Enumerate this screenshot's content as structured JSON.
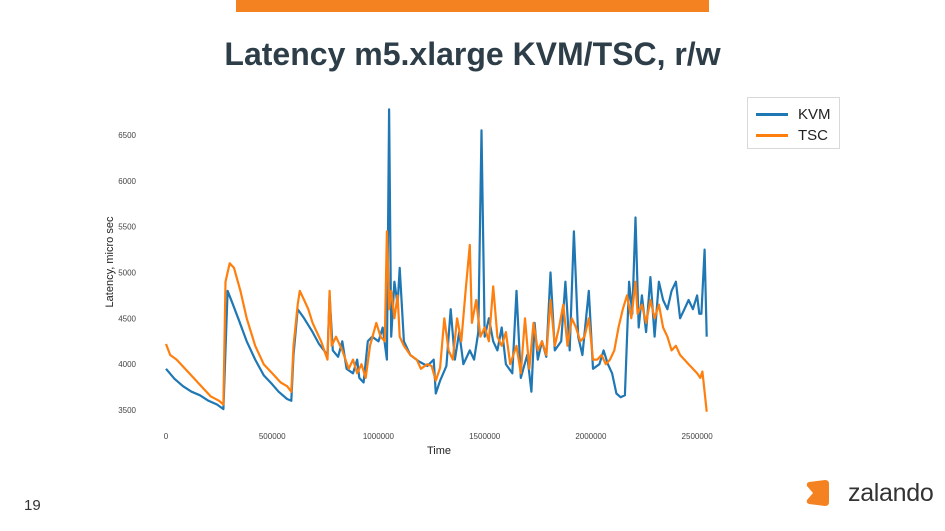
{
  "slide": {
    "title": "Latency m5.xlarge KVM/TSC, r/w",
    "page_number": "19",
    "logo_text": "zalando",
    "accent_color": "#f58220"
  },
  "chart_data": {
    "type": "line",
    "title": "",
    "xlabel": "Time",
    "ylabel": "Latency, micro sec",
    "xlim": [
      0,
      2570000
    ],
    "ylim": [
      3450,
      6850
    ],
    "x_ticks": [
      0,
      500000,
      1000000,
      1500000,
      2000000,
      2500000
    ],
    "x_tick_labels": [
      "0",
      "500000",
      "1000000",
      "1500000",
      "2000000",
      "2500000"
    ],
    "y_ticks": [
      3500,
      4000,
      4500,
      5000,
      5500,
      6000,
      6500
    ],
    "y_tick_labels": [
      "3500",
      "4000",
      "4500",
      "5000",
      "5500",
      "6000",
      "6500"
    ],
    "grid": false,
    "legend_position": "top-right",
    "series": [
      {
        "name": "KVM",
        "color": "#1f77b4",
        "points": [
          [
            0,
            3950
          ],
          [
            40000,
            3840
          ],
          [
            80000,
            3760
          ],
          [
            120000,
            3700
          ],
          [
            160000,
            3660
          ],
          [
            200000,
            3600
          ],
          [
            240000,
            3560
          ],
          [
            270000,
            3510
          ],
          [
            290000,
            4800
          ],
          [
            310000,
            4680
          ],
          [
            340000,
            4500
          ],
          [
            380000,
            4250
          ],
          [
            420000,
            4050
          ],
          [
            460000,
            3880
          ],
          [
            500000,
            3780
          ],
          [
            530000,
            3700
          ],
          [
            570000,
            3620
          ],
          [
            590000,
            3600
          ],
          [
            600000,
            4100
          ],
          [
            620000,
            4600
          ],
          [
            650000,
            4500
          ],
          [
            690000,
            4350
          ],
          [
            720000,
            4220
          ],
          [
            760000,
            4100
          ],
          [
            770000,
            4750
          ],
          [
            785000,
            4150
          ],
          [
            810000,
            4080
          ],
          [
            830000,
            4250
          ],
          [
            850000,
            3950
          ],
          [
            880000,
            3900
          ],
          [
            900000,
            4050
          ],
          [
            910000,
            3850
          ],
          [
            930000,
            3800
          ],
          [
            950000,
            4250
          ],
          [
            970000,
            4300
          ],
          [
            1000000,
            4250
          ],
          [
            1020000,
            4400
          ],
          [
            1040000,
            4050
          ],
          [
            1050000,
            6780
          ],
          [
            1060000,
            4300
          ],
          [
            1075000,
            4900
          ],
          [
            1090000,
            4650
          ],
          [
            1100000,
            5050
          ],
          [
            1120000,
            4250
          ],
          [
            1150000,
            4100
          ],
          [
            1190000,
            4030
          ],
          [
            1230000,
            3980
          ],
          [
            1260000,
            4050
          ],
          [
            1270000,
            3680
          ],
          [
            1290000,
            3820
          ],
          [
            1320000,
            3980
          ],
          [
            1340000,
            4600
          ],
          [
            1360000,
            4050
          ],
          [
            1380000,
            4350
          ],
          [
            1400000,
            4000
          ],
          [
            1430000,
            4150
          ],
          [
            1450000,
            4050
          ],
          [
            1470000,
            4350
          ],
          [
            1485000,
            6550
          ],
          [
            1500000,
            4300
          ],
          [
            1520000,
            4500
          ],
          [
            1540000,
            4250
          ],
          [
            1560000,
            4150
          ],
          [
            1580000,
            4400
          ],
          [
            1600000,
            4000
          ],
          [
            1630000,
            3900
          ],
          [
            1650000,
            4800
          ],
          [
            1670000,
            3850
          ],
          [
            1700000,
            4100
          ],
          [
            1720000,
            3700
          ],
          [
            1735000,
            4450
          ],
          [
            1750000,
            4050
          ],
          [
            1770000,
            4250
          ],
          [
            1790000,
            4080
          ],
          [
            1810000,
            5000
          ],
          [
            1830000,
            4150
          ],
          [
            1860000,
            4250
          ],
          [
            1880000,
            4900
          ],
          [
            1900000,
            4150
          ],
          [
            1920000,
            5450
          ],
          [
            1940000,
            4300
          ],
          [
            1960000,
            4100
          ],
          [
            1990000,
            4800
          ],
          [
            2010000,
            3950
          ],
          [
            2040000,
            4000
          ],
          [
            2060000,
            4150
          ],
          [
            2080000,
            4000
          ],
          [
            2100000,
            3900
          ],
          [
            2120000,
            3680
          ],
          [
            2140000,
            3640
          ],
          [
            2160000,
            3660
          ],
          [
            2180000,
            4900
          ],
          [
            2195000,
            4550
          ],
          [
            2210000,
            5600
          ],
          [
            2225000,
            4400
          ],
          [
            2240000,
            4750
          ],
          [
            2260000,
            4350
          ],
          [
            2280000,
            4950
          ],
          [
            2300000,
            4300
          ],
          [
            2320000,
            4900
          ],
          [
            2340000,
            4700
          ],
          [
            2360000,
            4600
          ],
          [
            2380000,
            4800
          ],
          [
            2400000,
            4900
          ],
          [
            2420000,
            4500
          ],
          [
            2440000,
            4600
          ],
          [
            2460000,
            4700
          ],
          [
            2480000,
            4600
          ],
          [
            2500000,
            4750
          ],
          [
            2510000,
            4550
          ],
          [
            2520000,
            4550
          ],
          [
            2535000,
            5250
          ],
          [
            2545000,
            4300
          ]
        ]
      },
      {
        "name": "TSC",
        "color": "#ff7f0e",
        "points": [
          [
            0,
            4220
          ],
          [
            20000,
            4100
          ],
          [
            50000,
            4050
          ],
          [
            90000,
            3950
          ],
          [
            130000,
            3850
          ],
          [
            170000,
            3750
          ],
          [
            210000,
            3650
          ],
          [
            250000,
            3600
          ],
          [
            270000,
            3560
          ],
          [
            280000,
            4900
          ],
          [
            300000,
            5100
          ],
          [
            320000,
            5050
          ],
          [
            350000,
            4800
          ],
          [
            380000,
            4500
          ],
          [
            420000,
            4200
          ],
          [
            460000,
            4000
          ],
          [
            500000,
            3900
          ],
          [
            540000,
            3800
          ],
          [
            570000,
            3760
          ],
          [
            590000,
            3700
          ],
          [
            600000,
            4200
          ],
          [
            620000,
            4650
          ],
          [
            630000,
            4800
          ],
          [
            650000,
            4700
          ],
          [
            670000,
            4600
          ],
          [
            690000,
            4450
          ],
          [
            710000,
            4350
          ],
          [
            730000,
            4250
          ],
          [
            760000,
            4050
          ],
          [
            770000,
            4800
          ],
          [
            780000,
            4200
          ],
          [
            800000,
            4300
          ],
          [
            830000,
            4150
          ],
          [
            860000,
            3950
          ],
          [
            880000,
            4050
          ],
          [
            900000,
            3900
          ],
          [
            920000,
            4000
          ],
          [
            940000,
            3850
          ],
          [
            960000,
            4200
          ],
          [
            990000,
            4450
          ],
          [
            1010000,
            4300
          ],
          [
            1030000,
            4250
          ],
          [
            1040000,
            5450
          ],
          [
            1050000,
            4600
          ],
          [
            1060000,
            4800
          ],
          [
            1075000,
            4500
          ],
          [
            1090000,
            4750
          ],
          [
            1100000,
            4300
          ],
          [
            1120000,
            4200
          ],
          [
            1150000,
            4100
          ],
          [
            1180000,
            4050
          ],
          [
            1200000,
            3950
          ],
          [
            1230000,
            4000
          ],
          [
            1250000,
            3980
          ],
          [
            1270000,
            3820
          ],
          [
            1290000,
            3960
          ],
          [
            1310000,
            4500
          ],
          [
            1330000,
            4150
          ],
          [
            1350000,
            4050
          ],
          [
            1370000,
            4500
          ],
          [
            1390000,
            4250
          ],
          [
            1410000,
            4800
          ],
          [
            1430000,
            5300
          ],
          [
            1440000,
            4450
          ],
          [
            1460000,
            4700
          ],
          [
            1480000,
            4300
          ],
          [
            1500000,
            4400
          ],
          [
            1520000,
            4250
          ],
          [
            1540000,
            4850
          ],
          [
            1560000,
            4300
          ],
          [
            1580000,
            4200
          ],
          [
            1600000,
            4350
          ],
          [
            1620000,
            4000
          ],
          [
            1650000,
            4200
          ],
          [
            1670000,
            3900
          ],
          [
            1690000,
            4500
          ],
          [
            1710000,
            3950
          ],
          [
            1730000,
            4450
          ],
          [
            1750000,
            4150
          ],
          [
            1770000,
            4250
          ],
          [
            1790000,
            4100
          ],
          [
            1810000,
            4700
          ],
          [
            1830000,
            4200
          ],
          [
            1850000,
            4400
          ],
          [
            1870000,
            4650
          ],
          [
            1890000,
            4200
          ],
          [
            1910000,
            4500
          ],
          [
            1930000,
            4400
          ],
          [
            1950000,
            4250
          ],
          [
            1970000,
            4300
          ],
          [
            1990000,
            4500
          ],
          [
            2010000,
            4050
          ],
          [
            2030000,
            4050
          ],
          [
            2050000,
            4100
          ],
          [
            2070000,
            4000
          ],
          [
            2090000,
            4050
          ],
          [
            2110000,
            4150
          ],
          [
            2130000,
            4400
          ],
          [
            2150000,
            4600
          ],
          [
            2170000,
            4750
          ],
          [
            2190000,
            4500
          ],
          [
            2210000,
            4900
          ],
          [
            2220000,
            4550
          ],
          [
            2240000,
            4650
          ],
          [
            2260000,
            4450
          ],
          [
            2280000,
            4700
          ],
          [
            2300000,
            4500
          ],
          [
            2320000,
            4650
          ],
          [
            2340000,
            4400
          ],
          [
            2360000,
            4300
          ],
          [
            2380000,
            4150
          ],
          [
            2400000,
            4200
          ],
          [
            2420000,
            4100
          ],
          [
            2440000,
            4050
          ],
          [
            2460000,
            4000
          ],
          [
            2480000,
            3950
          ],
          [
            2500000,
            3900
          ],
          [
            2515000,
            3850
          ],
          [
            2525000,
            3920
          ],
          [
            2535000,
            3700
          ],
          [
            2545000,
            3480
          ]
        ]
      }
    ]
  }
}
